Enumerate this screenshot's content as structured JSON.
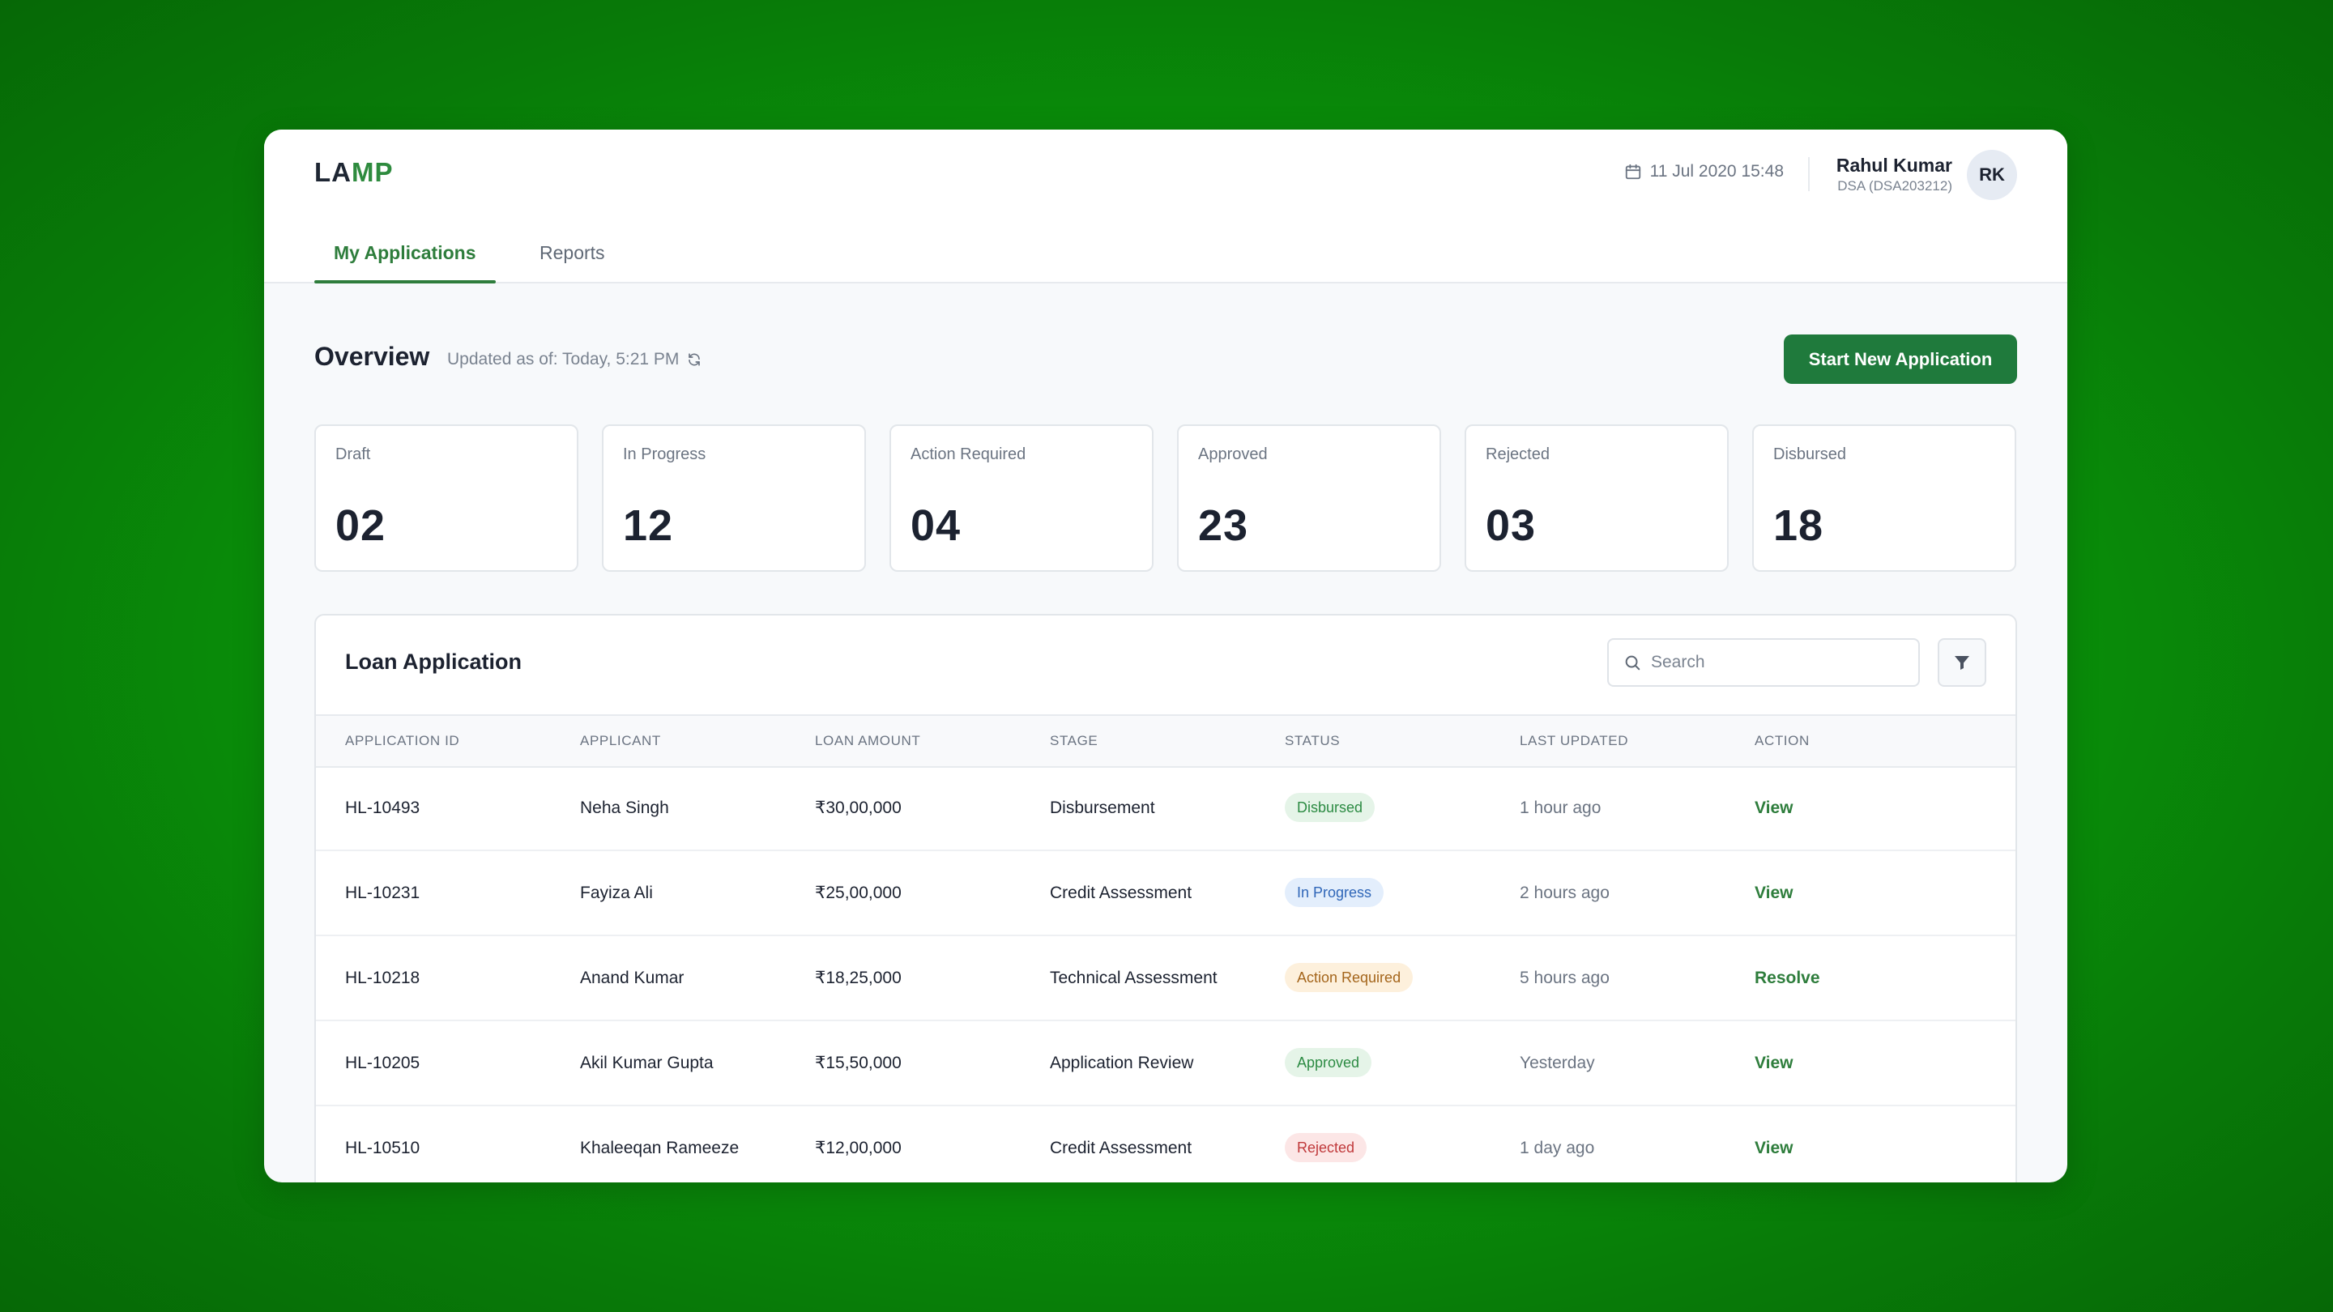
{
  "header": {
    "logo_part1": "LA",
    "logo_part2": "MP",
    "datetime": "11 Jul 2020 15:48",
    "user_name": "Rahul Kumar",
    "user_role": "DSA  (DSA203212)",
    "avatar_initials": "RK"
  },
  "tabs": [
    {
      "label": "My Applications",
      "active": true
    },
    {
      "label": "Reports",
      "active": false
    }
  ],
  "overview": {
    "title": "Overview",
    "updated": "Updated as of: Today, 5:21 PM",
    "new_button": "Start New Application"
  },
  "stats": [
    {
      "label": "Draft",
      "value": "02"
    },
    {
      "label": "In Progress",
      "value": "12"
    },
    {
      "label": "Action Required",
      "value": "04"
    },
    {
      "label": "Approved",
      "value": "23"
    },
    {
      "label": "Rejected",
      "value": "03"
    },
    {
      "label": "Disbursed",
      "value": "18"
    }
  ],
  "table": {
    "title": "Loan Application",
    "search_placeholder": "Search",
    "columns": [
      "APPLICATION ID",
      "APPLICANT",
      "LOAN AMOUNT",
      "STAGE",
      "STATUS",
      "LAST UPDATED",
      "ACTION"
    ],
    "rows": [
      {
        "id": "HL-10493",
        "applicant": "Neha Singh",
        "amount": "₹30,00,000",
        "stage": "Disbursement",
        "status": "Disbursed",
        "updated": "1 hour ago",
        "action": "View"
      },
      {
        "id": "HL-10231",
        "applicant": "Fayiza Ali",
        "amount": "₹25,00,000",
        "stage": "Credit Assessment",
        "status": "In Progress",
        "updated": "2 hours ago",
        "action": "View"
      },
      {
        "id": "HL-10218",
        "applicant": "Anand Kumar",
        "amount": "₹18,25,000",
        "stage": "Technical Assessment",
        "status": "Action Required",
        "updated": "5 hours ago",
        "action": "Resolve"
      },
      {
        "id": "HL-10205",
        "applicant": "Akil Kumar Gupta",
        "amount": "₹15,50,000",
        "stage": "Application Review",
        "status": "Approved",
        "updated": "Yesterday",
        "action": "View"
      },
      {
        "id": "HL-10510",
        "applicant": "Khaleeqan Rameeze",
        "amount": "₹12,00,000",
        "stage": "Credit Assessment",
        "status": "Rejected",
        "updated": "1 day ago",
        "action": "View"
      }
    ]
  },
  "colors": {
    "brand_green": "#1f7a3c",
    "accent_green": "#2e8b3e",
    "background": "#0a9a0a"
  }
}
